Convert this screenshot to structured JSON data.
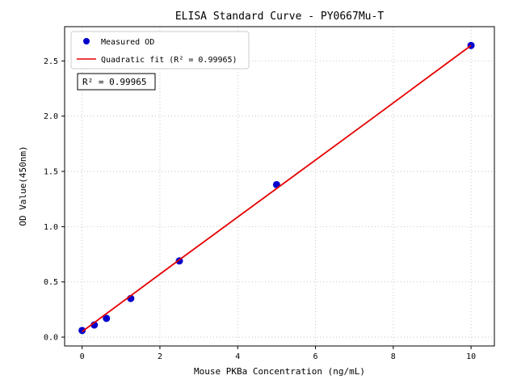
{
  "chart_data": {
    "type": "scatter",
    "title": "ELISA Standard Curve - PY0667Mu-T",
    "xlabel": "Mouse PKBa Concentration (ng/mL)",
    "ylabel": "OD Value(450nm)",
    "xlim": [
      -0.45,
      10.6
    ],
    "ylim": [
      -0.08,
      2.81
    ],
    "xticks": [
      0,
      2,
      4,
      6,
      8,
      10
    ],
    "xtick_labels": [
      "0",
      "2",
      "4",
      "6",
      "8",
      "10"
    ],
    "yticks": [
      0.0,
      0.5,
      1.0,
      1.5,
      2.0,
      2.5
    ],
    "ytick_labels": [
      "0.0",
      "0.5",
      "1.0",
      "1.5",
      "2.0",
      "2.5"
    ],
    "grid": true,
    "grid_style": "dotted",
    "annotation": "R² = 0.99965",
    "legend": {
      "position": "upper-left",
      "items": [
        {
          "label": "Measured OD",
          "marker": "point",
          "color": "#0000cd"
        },
        {
          "label": "Quadratic fit (R² = 0.99965)",
          "marker": "line",
          "color": "#e60000"
        }
      ]
    },
    "series": [
      {
        "name": "Measured OD",
        "type": "scatter",
        "color": "#0000cd",
        "points": [
          [
            0,
            0.06
          ],
          [
            0.313,
            0.11
          ],
          [
            0.625,
            0.17
          ],
          [
            1.25,
            0.35
          ],
          [
            2.5,
            0.69
          ],
          [
            5,
            1.38
          ],
          [
            10,
            2.64
          ]
        ]
      },
      {
        "name": "Quadratic fit",
        "type": "line",
        "color": "#e60000",
        "points": [
          [
            0,
            0.05
          ],
          [
            2.5,
            0.7
          ],
          [
            5,
            1.345
          ],
          [
            7.5,
            1.99
          ],
          [
            10,
            2.64
          ]
        ]
      }
    ],
    "colors": {
      "point": "#0000cd",
      "fit_line": "#e60000",
      "grid": "#bbbbbb",
      "axis_border": "#000000",
      "legend_border": "#cccccc",
      "annotation_border": "#000000"
    }
  }
}
